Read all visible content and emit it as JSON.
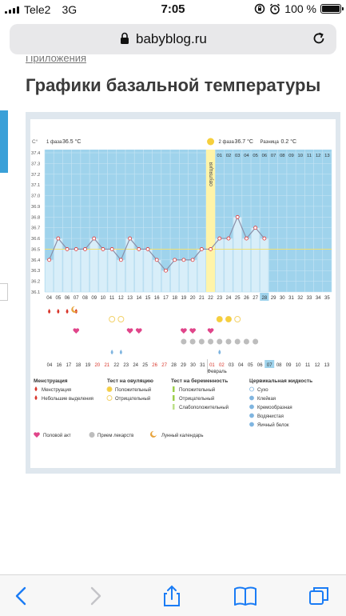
{
  "status_bar": {
    "carrier": "Tele2",
    "network": "3G",
    "time": "7:05",
    "battery": "100 %"
  },
  "browser": {
    "url": "babyblog.ru"
  },
  "page": {
    "breadcrumb": "Приложения",
    "title": "Графики базальной температуры"
  },
  "chart_data": {
    "type": "line",
    "y_axis_label": "С°",
    "y_ticks": [
      "37.4",
      "37.3",
      "37.2",
      "37.1",
      "37.0",
      "36.9",
      "36.8",
      "36.7",
      "36.6",
      "36.5",
      "36.4",
      "36.3",
      "36.2",
      "36.1"
    ],
    "ylim": [
      36.1,
      37.4
    ],
    "phase1_label": "1 фаза",
    "phase1_value": "36.5 °С",
    "phase2_label": "2 фаза",
    "phase2_value": "36.7 °С",
    "difference_label": "Разница",
    "difference_value": "0.2 °С",
    "ovulation_label": "овуляция",
    "cycle_days": [
      "04",
      "05",
      "06",
      "07",
      "08",
      "09",
      "10",
      "11",
      "12",
      "13",
      "14",
      "15",
      "16",
      "17",
      "18",
      "19",
      "20",
      "21",
      "22",
      "23",
      "24",
      "25",
      "26",
      "27",
      "28",
      "29",
      "30",
      "31",
      "32",
      "33",
      "34",
      "35"
    ],
    "phase2_days": [
      "01",
      "02",
      "03",
      "04",
      "05",
      "06",
      "07",
      "08",
      "09",
      "10",
      "11",
      "12",
      "13"
    ],
    "temperatures": [
      36.4,
      36.6,
      36.5,
      36.5,
      36.5,
      36.6,
      36.5,
      36.5,
      36.4,
      36.6,
      36.5,
      36.5,
      36.4,
      36.3,
      36.4,
      36.4,
      36.4,
      36.5,
      36.5,
      36.6,
      36.6,
      36.8,
      36.6,
      36.7,
      36.6
    ],
    "coverline": 36.5,
    "ovulation_day_index": 18,
    "highlight_day_index": 24,
    "calendar_dates": [
      "04",
      "16",
      "17",
      "18",
      "19",
      "20",
      "21",
      "22",
      "23",
      "24",
      "25",
      "26",
      "27",
      "28",
      "29",
      "30",
      "31",
      "01",
      "02",
      "03",
      "04",
      "05",
      "06",
      "07",
      "08",
      "09",
      "10",
      "11",
      "12",
      "13"
    ],
    "red_date_indices": [
      5,
      6,
      11,
      12,
      17,
      18
    ],
    "highlight_date_index": 23,
    "month_label": "Февраль",
    "month_label_index": 17,
    "menstruation_days": [
      0,
      1,
      2,
      3
    ],
    "menstruation_heavy_days": [
      0
    ],
    "ovulation_negative_days": [
      7,
      8,
      19,
      20,
      21
    ],
    "ovulation_positive_days": [
      19,
      20
    ],
    "intercourse_days": [
      3,
      9,
      10,
      15,
      16,
      18
    ],
    "medication_days": [
      15,
      16,
      17,
      18,
      19,
      20,
      21,
      22,
      23
    ],
    "moon_day": 3,
    "cervical_days": [
      7,
      8,
      19
    ]
  },
  "legend": {
    "menstruation": {
      "title": "Менструация",
      "items": [
        "Менструация",
        "Небольшие выделения"
      ]
    },
    "ovulation_test": {
      "title": "Тест на овуляцию",
      "items": [
        "Положительный",
        "Отрицательный"
      ]
    },
    "pregnancy_test": {
      "title": "Тест на беременность",
      "items": [
        "Положительный",
        "Отрицательный",
        "Слабоположительный"
      ]
    },
    "cervical": {
      "title": "Цервикальная жидкость",
      "items": [
        "Сухо",
        "Клейкая",
        "Кремообразная",
        "Водянистая",
        "Яичный белок"
      ]
    },
    "bottom": [
      "Половой акт",
      "Прием лекарств",
      "Лунный календарь"
    ]
  },
  "colors": {
    "chart_bg": "#9fd3ec",
    "bars": "#d8eef9",
    "line": "#8a8fa8",
    "ovulation": "#fff4a8",
    "heart": "#e0458a",
    "red": "#d8352a"
  }
}
